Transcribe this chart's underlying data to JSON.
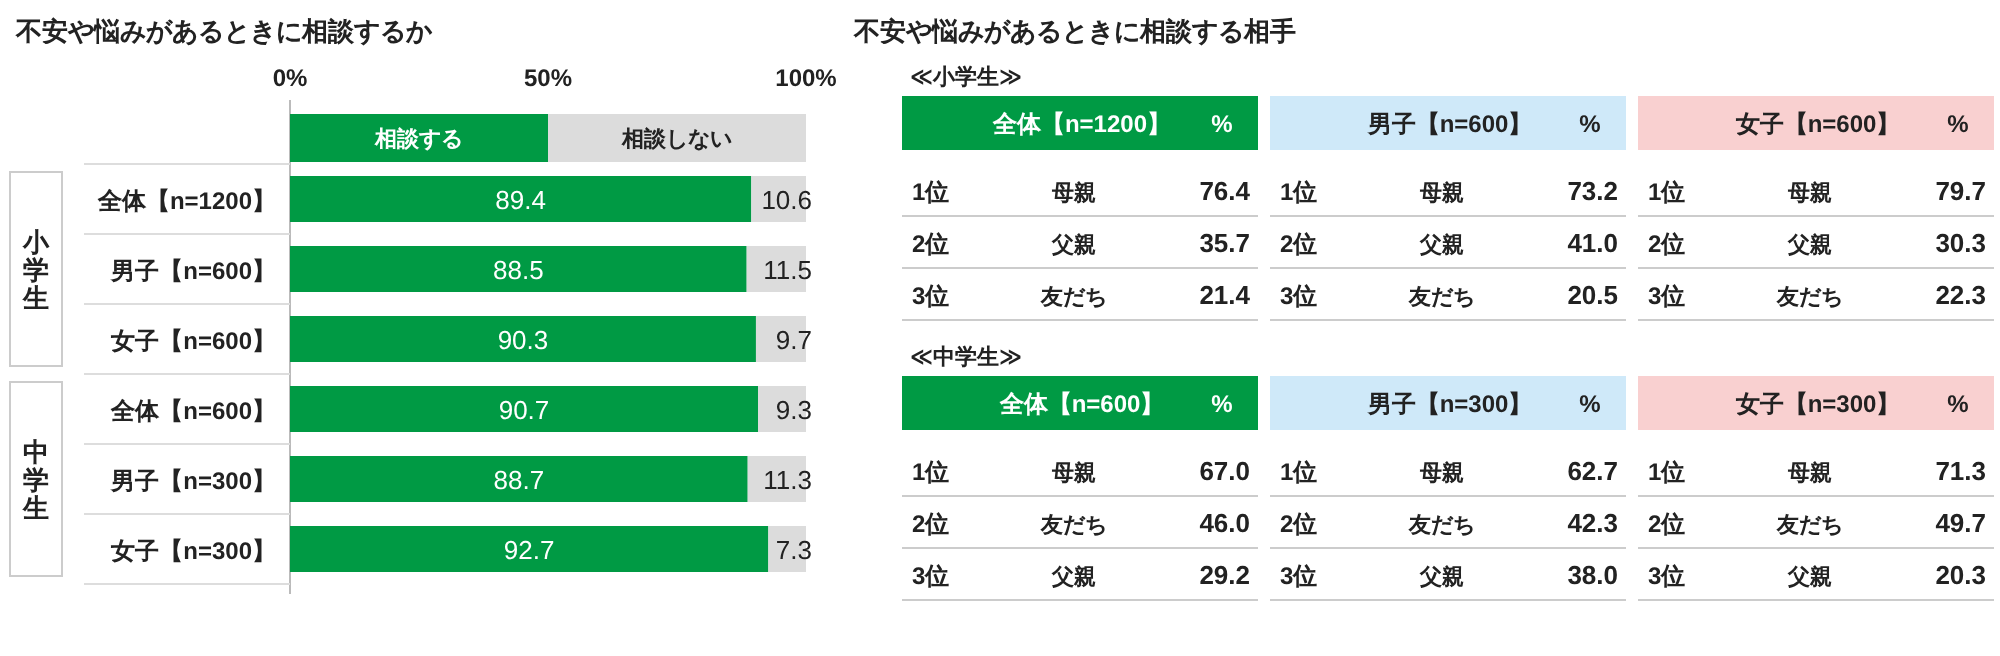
{
  "chart_data": [
    {
      "type": "bar",
      "orientation": "horizontal",
      "stacked": true,
      "title": "不安や悩みがあるときに相談するか",
      "categories": [
        "全体【n=1200】",
        "男子【n=600】",
        "女子【n=600】",
        "全体【n=600】",
        "男子【n=300】",
        "女子【n=300】"
      ],
      "series": [
        {
          "name": "相談する",
          "color": "#009a44",
          "values": [
            89.4,
            88.5,
            90.3,
            90.7,
            88.7,
            92.7
          ]
        },
        {
          "name": "相談しない",
          "color": "#dcdcdc",
          "values": [
            10.6,
            11.5,
            9.7,
            9.3,
            11.3,
            7.3
          ]
        }
      ],
      "xlim": [
        0,
        100
      ],
      "xticks": [
        {
          "value": 0,
          "label": "0%"
        },
        {
          "value": 50,
          "label": "50%"
        },
        {
          "value": 100,
          "label": "100%"
        }
      ],
      "data_labels": true,
      "legend": "top",
      "annotations": [
        "小学生",
        "中学生"
      ]
    },
    {
      "type": "other",
      "title": "不安や悩みがあるときに相談する相手"
    },
    {
      "type": "other",
      "subtitle": "≪小学生≫",
      "title": "全体【n=1200】",
      "color": "#009a44",
      "categories": [
        "母親",
        "父親",
        "友だち"
      ],
      "values": [
        76.4,
        35.7,
        21.4
      ],
      "value_labels": [
        "76.4",
        "35.7",
        "21.4"
      ],
      "annotations": [
        "%",
        "1位",
        "2位",
        "3位"
      ]
    },
    {
      "type": "other",
      "title": "男子【n=600】",
      "color": "#cfe9f9",
      "categories": [
        "母親",
        "父親",
        "友だち"
      ],
      "values": [
        73.2,
        41.0,
        20.5
      ],
      "value_labels": [
        "73.2",
        "41.0",
        "20.5"
      ],
      "annotations": [
        "%",
        "1位",
        "2位",
        "3位"
      ]
    },
    {
      "type": "other",
      "title": "女子【n=600】",
      "color": "#f9d0d0",
      "categories": [
        "母親",
        "父親",
        "友だち"
      ],
      "values": [
        79.7,
        30.3,
        22.3
      ],
      "value_labels": [
        "79.7",
        "30.3",
        "22.3"
      ],
      "annotations": [
        "%",
        "1位",
        "2位",
        "3位"
      ]
    },
    {
      "type": "other",
      "subtitle": "≪中学生≫",
      "title": "全体【n=600】",
      "color": "#009a44",
      "categories": [
        "母親",
        "友だち",
        "父親"
      ],
      "values": [
        67.0,
        46.0,
        29.2
      ],
      "value_labels": [
        "67.0",
        "46.0",
        "29.2"
      ],
      "annotations": [
        "%",
        "1位",
        "2位",
        "3位"
      ]
    },
    {
      "type": "other",
      "title": "男子【n=300】",
      "color": "#cfe9f9",
      "categories": [
        "母親",
        "友だち",
        "父親"
      ],
      "values": [
        62.7,
        42.3,
        38.0
      ],
      "value_labels": [
        "62.7",
        "42.3",
        "38.0"
      ],
      "annotations": [
        "%",
        "1位",
        "2位",
        "3位"
      ]
    },
    {
      "type": "other",
      "title": "女子【n=300】",
      "color": "#f9d0d0",
      "categories": [
        "母親",
        "友だち",
        "父親"
      ],
      "values": [
        71.3,
        49.7,
        20.3
      ],
      "value_labels": [
        "71.3",
        "49.7",
        "20.3"
      ],
      "annotations": [
        "%",
        "1位",
        "2位",
        "3位"
      ]
    }
  ]
}
